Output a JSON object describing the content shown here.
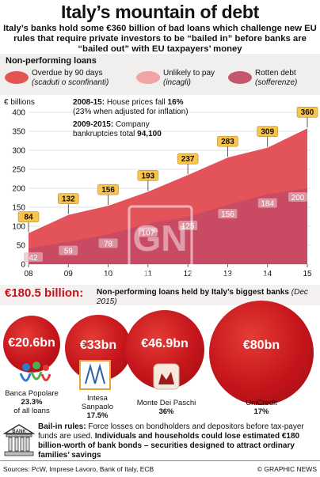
{
  "header": {
    "title": "Italy’s mountain of debt",
    "subtitle": "Italy’s banks hold some €360 billion of bad loans which challenge new EU rules that require private investors to be “bailed in” before banks are “bailed out” with EU taxpayers’ money"
  },
  "legend": {
    "section_label": "Non-performing loans",
    "items": [
      {
        "label": "Overdue by 90 days",
        "sub": "(scaduti o sconfinanti)",
        "color": "#e25552"
      },
      {
        "label": "Unlikely to pay",
        "sub": "(incagli)",
        "color": "#f2a3a3"
      },
      {
        "label": "Rotten debt",
        "sub": "(sofferenze)",
        "color": "#c4586a"
      }
    ]
  },
  "annotations": {
    "unit": "€ billions",
    "a1_years": "2008-15:",
    "a1_text": "House prices fall",
    "a1_value": "16%",
    "a1_line2": "(23% when adjusted for inflation)",
    "a2_years": "2009-2015:",
    "a2_text": "Company",
    "a2_line2": "bankruptcies total",
    "a2_value": "94,100"
  },
  "chart_data": {
    "type": "area",
    "x": [
      "08",
      "09",
      "10",
      "11",
      "12",
      "13",
      "14",
      "15"
    ],
    "total": [
      84,
      132,
      156,
      193,
      237,
      283,
      309,
      360
    ],
    "rotten_debt": [
      42,
      59,
      78,
      107,
      125,
      156,
      184,
      200
    ],
    "y_ticks": [
      0,
      50,
      100,
      150,
      200,
      250,
      300,
      350,
      400
    ],
    "ylim": [
      0,
      400
    ],
    "ylabel": "€ billions",
    "colors": {
      "total": "#e2545a",
      "rotten": "#c94a63",
      "line": "#ffffff",
      "label_box": "#f9c44d"
    }
  },
  "banks_section": {
    "amount": "€180.5 billion:",
    "text": "Non-performing loans held by Italy’s biggest banks",
    "date": "(Dec 2015)"
  },
  "banks": [
    {
      "value": "€20.6bn",
      "name": "Banca Popolare",
      "share": "23.3%",
      "share_note": "of all loans"
    },
    {
      "value": "€33bn",
      "name": "Intesa Sanpaolo",
      "share": "17.5%"
    },
    {
      "value": "€46.9bn",
      "name": "Monte Dei Paschi",
      "share": "36%"
    },
    {
      "value": "€80bn",
      "name": "UniCredit",
      "share": "17%"
    }
  ],
  "bailin": {
    "label": "Bail-in rules:",
    "text1": "Force losses on bondholders and depositors before tax-payer funds are used.",
    "text2": "Individuals and households could lose estimated €180 billion-worth of bank bonds – securities designed to attract ordinary families’ savings",
    "bank_sign": "BANK"
  },
  "footer": {
    "sources": "Sources: PcW, Imprese Lavoro, Bank of Italy, ECB",
    "credit": "© GRAPHIC NEWS"
  },
  "watermark": {
    "logo": "GN",
    "text": "GRAPHIC NEWS"
  }
}
